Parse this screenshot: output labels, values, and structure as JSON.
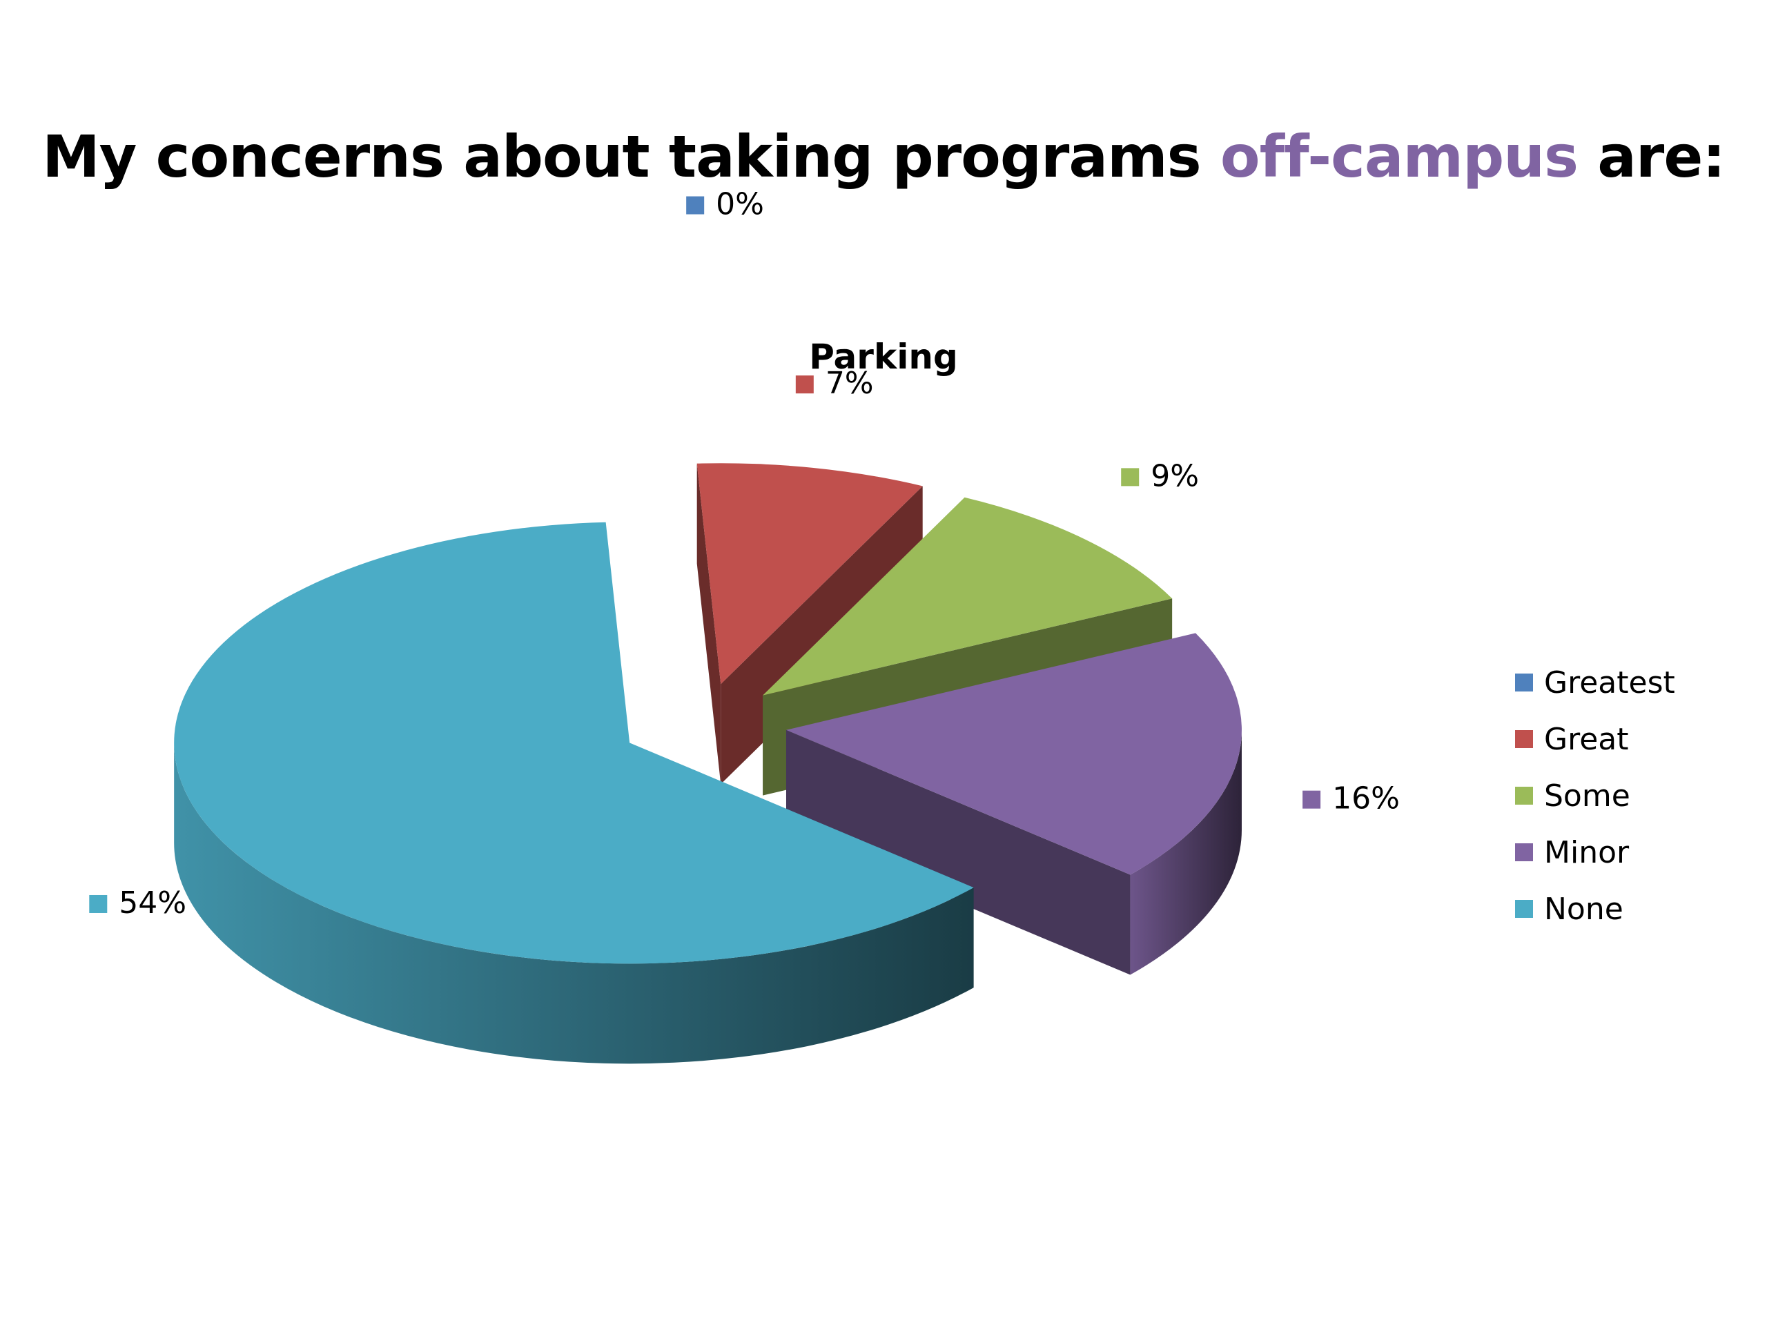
{
  "slide": {
    "title_before": "My concerns about taking programs",
    "title_highlight": "off-campus",
    "title_after": "are:",
    "highlight_color": "#8064a2"
  },
  "chart_data": {
    "type": "pie",
    "title": "Parking",
    "three_d": true,
    "exploded": true,
    "legend_position": "right",
    "categories": [
      "Greatest",
      "Great",
      "Some",
      "Minor",
      "None"
    ],
    "values": [
      0,
      7,
      9,
      16,
      54
    ],
    "labels": [
      "0%",
      "7%",
      "9%",
      "16%",
      "54%"
    ],
    "colors": [
      "#4f81bd",
      "#c0504d",
      "#9bbb59",
      "#8064a2",
      "#4bacc6"
    ]
  }
}
